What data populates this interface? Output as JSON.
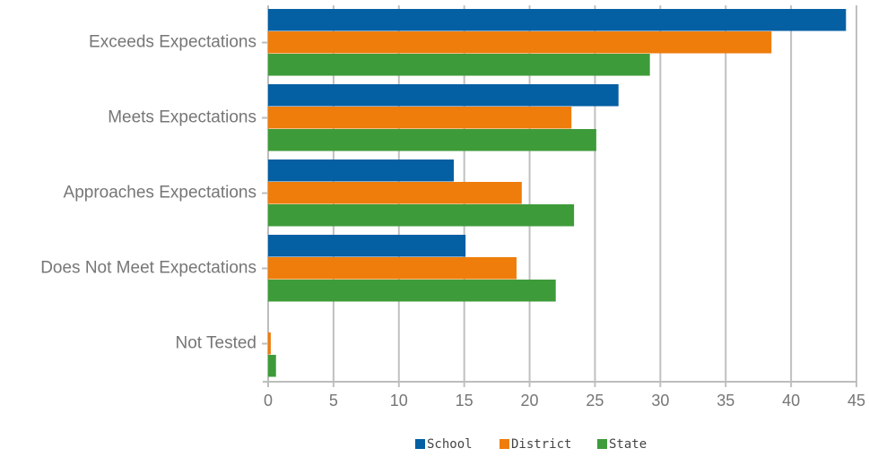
{
  "chart_data": {
    "type": "bar",
    "orientation": "horizontal",
    "categories": [
      "Exceeds Expectations",
      "Meets Expectations",
      "Approaches Expectations",
      "Does Not Meet Expectations",
      "Not Tested"
    ],
    "series": [
      {
        "name": "School",
        "color": "#045fa3",
        "values": [
          44.2,
          26.8,
          14.2,
          15.1,
          0
        ]
      },
      {
        "name": "District",
        "color": "#ee7d0c",
        "values": [
          38.5,
          23.2,
          19.4,
          19.0,
          0.2
        ]
      },
      {
        "name": "State",
        "color": "#3e9b3a",
        "values": [
          29.2,
          25.1,
          23.4,
          22.0,
          0.6
        ]
      }
    ],
    "xticks": [
      "0",
      "5",
      "10",
      "15",
      "20",
      "25",
      "30",
      "35",
      "40",
      "45"
    ],
    "xlim": [
      0,
      45
    ],
    "grid": true,
    "legend_position": "bottom"
  }
}
